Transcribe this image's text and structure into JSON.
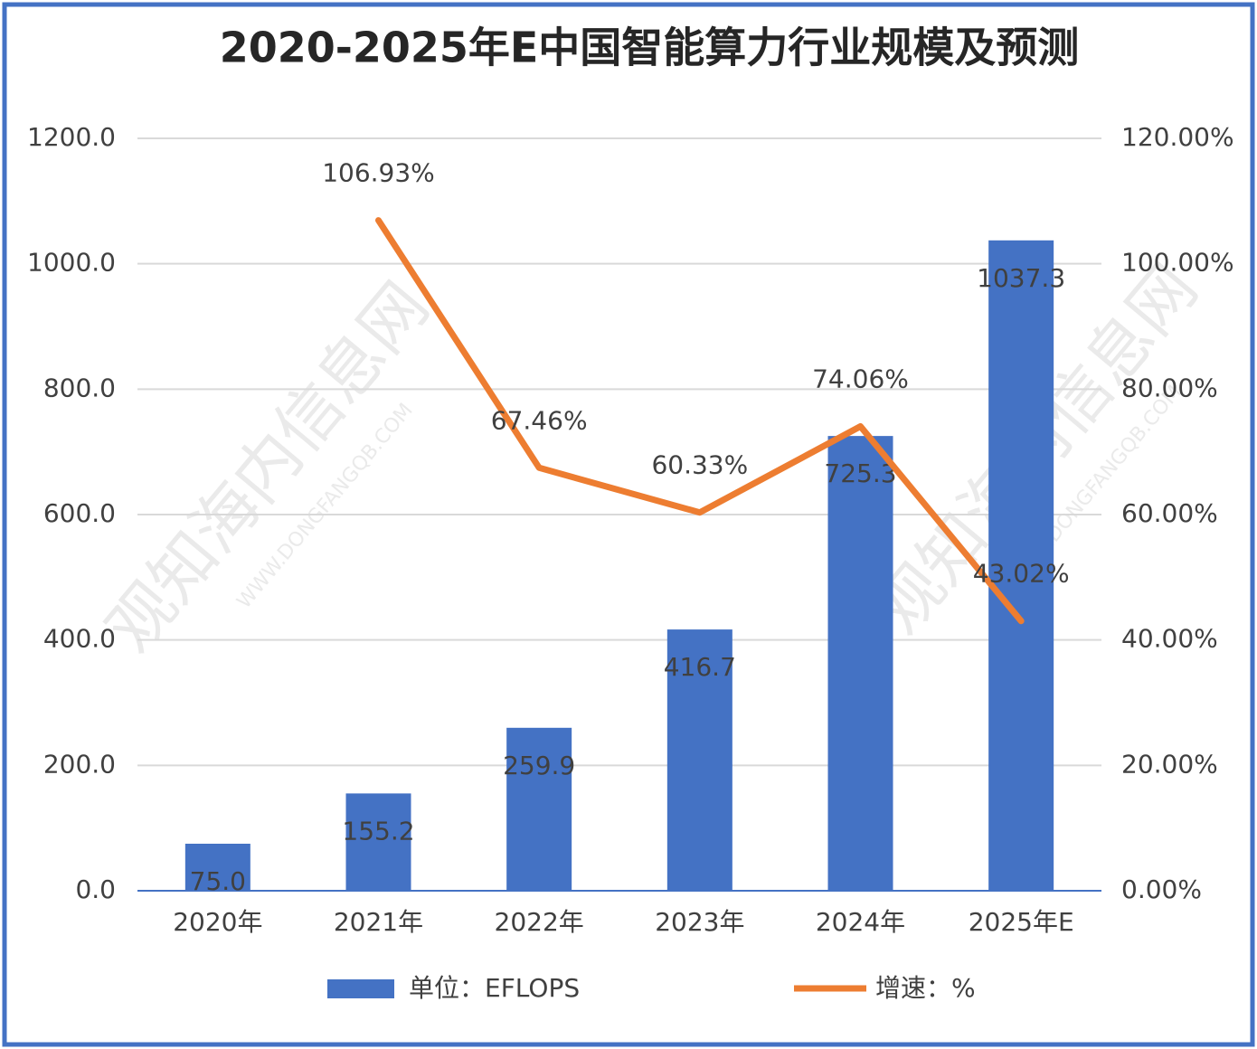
{
  "chart_data": {
    "type": "bar",
    "title": "2020-2025年E中国智能算力行业规模及预测",
    "watermark": "观知海内信息网",
    "watermark_url": "WWW.DONGFANGQB.COM",
    "categories": [
      "2020年",
      "2021年",
      "2022年",
      "2023年",
      "2024年",
      "2025年E"
    ],
    "series": [
      {
        "name": "单位：EFLOPS",
        "type": "bar",
        "color": "#4472c4",
        "values": [
          75.0,
          155.2,
          259.9,
          416.7,
          725.3,
          1037.3
        ],
        "value_labels": [
          "75.0",
          "155.2",
          "259.9",
          "416.7",
          "725.3",
          "1037.3"
        ]
      },
      {
        "name": "增速：%",
        "type": "line",
        "axis": "y2",
        "color": "#ed7d31",
        "values": [
          null,
          106.93,
          67.46,
          60.33,
          74.06,
          43.02
        ],
        "value_labels": [
          null,
          "106.93%",
          "67.46%",
          "60.33%",
          "74.06%",
          "43.02%"
        ]
      }
    ],
    "ylim": [
      0,
      1200
    ],
    "yticks": [
      {
        "value": 0,
        "label": "0.0"
      },
      {
        "value": 200,
        "label": "200.0"
      },
      {
        "value": 400,
        "label": "400.0"
      },
      {
        "value": 600,
        "label": "600.0"
      },
      {
        "value": 800,
        "label": "800.0"
      },
      {
        "value": 1000,
        "label": "1000.0"
      },
      {
        "value": 1200,
        "label": "1200.0"
      }
    ],
    "y2lim": [
      0,
      120
    ],
    "y2ticks": [
      {
        "value": 0,
        "label": "0.00%"
      },
      {
        "value": 20,
        "label": "20.00%"
      },
      {
        "value": 40,
        "label": "40.00%"
      },
      {
        "value": 60,
        "label": "60.00%"
      },
      {
        "value": 80,
        "label": "80.00%"
      },
      {
        "value": 100,
        "label": "100.00%"
      },
      {
        "value": 120,
        "label": "120.00%"
      }
    ],
    "grid": true,
    "legend": "bottom"
  }
}
